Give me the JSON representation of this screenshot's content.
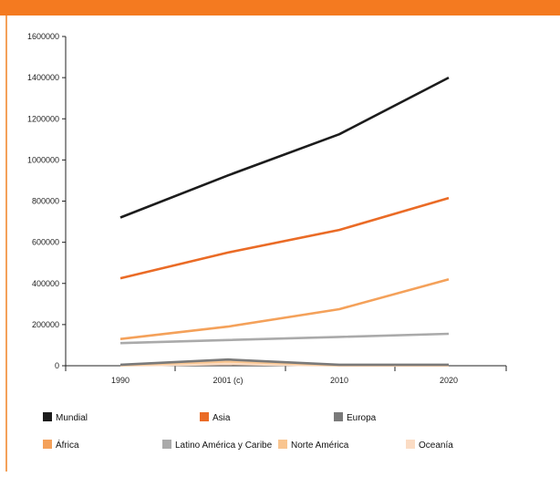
{
  "chart_data": {
    "type": "line",
    "title": "",
    "xlabel": "",
    "ylabel": "",
    "categories": [
      "1990",
      "2001 (c)",
      "2010",
      "2020"
    ],
    "ylim": [
      0,
      1600000
    ],
    "yticks": [
      0,
      200000,
      400000,
      600000,
      800000,
      1000000,
      1200000,
      1400000,
      1600000
    ],
    "grid": false,
    "legend_position": "bottom",
    "series": [
      {
        "name": "Mundial",
        "color": "#1c1c1c",
        "values": [
          720000,
          925000,
          1125000,
          1400000
        ]
      },
      {
        "name": "Asia",
        "color": "#ea6b26",
        "values": [
          425000,
          550000,
          660000,
          815000
        ]
      },
      {
        "name": "Europa",
        "color": "#7a7a7a",
        "values": [
          5000,
          30000,
          5000,
          5000
        ]
      },
      {
        "name": "África",
        "color": "#f4a15a",
        "values": [
          130000,
          190000,
          275000,
          420000
        ]
      },
      {
        "name": "Latino América y Caribe",
        "color": "#aaaaaa",
        "values": [
          110000,
          125000,
          140000,
          155000
        ]
      },
      {
        "name": "Norte América",
        "color": "#f9c590",
        "values": [
          3000,
          20000,
          3000,
          3000
        ]
      },
      {
        "name": "Oceanía",
        "color": "#fbdcc4",
        "values": [
          1000,
          8000,
          1000,
          1000
        ]
      }
    ]
  }
}
